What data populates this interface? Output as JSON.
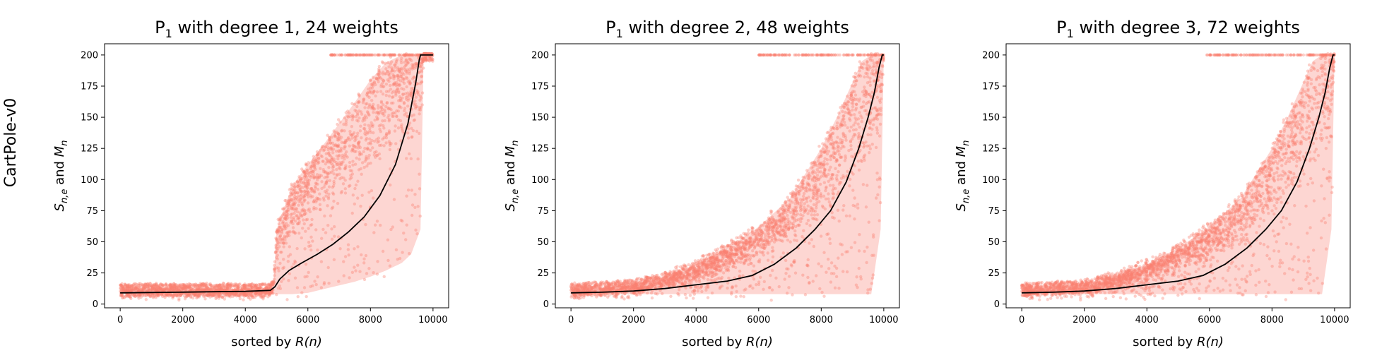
{
  "row_label": "CartPole-v0",
  "chart_data": [
    {
      "type": "scatter",
      "title_main": "P",
      "title_sub": "1",
      "title_rest": " with degree 1, 24 weights",
      "xlabel_main": "sorted by ",
      "xlabel_italic": "R(n)",
      "ylabel": "S",
      "ylabel_sub": "n,e",
      "ylabel_mid": " and ",
      "ylabel_main2": "M",
      "ylabel_sub2": "n",
      "xlim": [
        -500,
        10500
      ],
      "ylim": [
        -3,
        209
      ],
      "xticks": [
        0,
        2000,
        4000,
        6000,
        8000,
        10000
      ],
      "yticks": [
        0,
        25,
        50,
        75,
        100,
        125,
        150,
        175,
        200
      ],
      "series": [
        {
          "role": "scatter",
          "color": "#fa8072",
          "band": [
            [
              0,
              8,
              12
            ],
            [
              4800,
              8,
              12
            ],
            [
              4900,
              8,
              16
            ],
            [
              5000,
              8,
              60
            ],
            [
              5500,
              8,
              95
            ],
            [
              6000,
              9,
              112
            ],
            [
              6500,
              12,
              128
            ],
            [
              7000,
              15,
              145
            ],
            [
              7500,
              18,
              162
            ],
            [
              8000,
              22,
              180
            ],
            [
              8500,
              27,
              194
            ],
            [
              9000,
              33,
              200
            ],
            [
              9300,
              40,
              200
            ],
            [
              9600,
              60,
              200
            ],
            [
              9700,
              200,
              200
            ],
            [
              10000,
              200,
              200
            ]
          ],
          "cap_start": 6700
        },
        {
          "role": "mean",
          "color": "#000000",
          "x": [
            0,
            1000,
            2000,
            3000,
            4000,
            4800,
            4950,
            5100,
            5400,
            5800,
            6300,
            6800,
            7300,
            7800,
            8300,
            8800,
            9200,
            9450,
            9560,
            9600,
            10000
          ],
          "y": [
            9,
            9.3,
            9.6,
            9.9,
            10.2,
            11,
            14,
            20,
            27,
            33,
            40,
            48,
            58,
            70,
            87,
            112,
            145,
            178,
            196,
            200,
            200
          ]
        }
      ]
    },
    {
      "type": "scatter",
      "title_main": "P",
      "title_sub": "1",
      "title_rest": " with degree 2, 48 weights",
      "xlabel_main": "sorted by ",
      "xlabel_italic": "R(n)",
      "ylabel": "S",
      "ylabel_sub": "n,e",
      "ylabel_mid": " and ",
      "ylabel_main2": "M",
      "ylabel_sub2": "n",
      "xlim": [
        -500,
        10500
      ],
      "ylim": [
        -3,
        209
      ],
      "xticks": [
        0,
        2000,
        4000,
        6000,
        8000,
        10000
      ],
      "yticks": [
        0,
        25,
        50,
        75,
        100,
        125,
        150,
        175,
        200
      ],
      "series": [
        {
          "role": "scatter",
          "color": "#fa8072",
          "band": [
            [
              0,
              8,
              12
            ],
            [
              2000,
              8,
              15
            ],
            [
              3000,
              8,
              22
            ],
            [
              4000,
              8,
              32
            ],
            [
              5000,
              8,
              45
            ],
            [
              6000,
              8,
              62
            ],
            [
              7000,
              8,
              85
            ],
            [
              7500,
              8,
              105
            ],
            [
              8000,
              8,
              125
            ],
            [
              8500,
              8,
              150
            ],
            [
              9000,
              8,
              178
            ],
            [
              9300,
              8,
              195
            ],
            [
              9600,
              8,
              200
            ],
            [
              9900,
              60,
              200
            ],
            [
              10000,
              200,
              200
            ]
          ],
          "cap_start": 6000
        },
        {
          "role": "mean",
          "color": "#000000",
          "x": [
            0,
            1000,
            2000,
            3000,
            4000,
            5000,
            5800,
            6500,
            7200,
            7800,
            8300,
            8800,
            9200,
            9500,
            9700,
            9850,
            9950,
            10000
          ],
          "y": [
            9,
            9.5,
            10.5,
            12.5,
            15.5,
            18.5,
            23,
            32,
            45,
            60,
            75,
            98,
            125,
            150,
            170,
            190,
            200,
            200
          ]
        }
      ]
    },
    {
      "type": "scatter",
      "title_main": "P",
      "title_sub": "1",
      "title_rest": " with degree 3, 72 weights",
      "xlabel_main": "sorted by ",
      "xlabel_italic": "R(n)",
      "ylabel": "S",
      "ylabel_sub": "n,e",
      "ylabel_mid": " and ",
      "ylabel_main2": "M",
      "ylabel_sub2": "n",
      "xlim": [
        -500,
        10500
      ],
      "ylim": [
        -3,
        209
      ],
      "xticks": [
        0,
        2000,
        4000,
        6000,
        8000,
        10000
      ],
      "yticks": [
        0,
        25,
        50,
        75,
        100,
        125,
        150,
        175,
        200
      ],
      "series": [
        {
          "role": "scatter",
          "color": "#fa8072",
          "band": [
            [
              0,
              8,
              12
            ],
            [
              2000,
              8,
              15
            ],
            [
              3000,
              8,
              22
            ],
            [
              4000,
              8,
              32
            ],
            [
              5000,
              8,
              45
            ],
            [
              6000,
              8,
              62
            ],
            [
              7000,
              8,
              85
            ],
            [
              7500,
              8,
              105
            ],
            [
              8000,
              8,
              125
            ],
            [
              8500,
              8,
              150
            ],
            [
              9000,
              8,
              178
            ],
            [
              9300,
              8,
              195
            ],
            [
              9600,
              8,
              200
            ],
            [
              9900,
              60,
              200
            ],
            [
              10000,
              200,
              200
            ]
          ],
          "cap_start": 5900
        },
        {
          "role": "mean",
          "color": "#000000",
          "x": [
            0,
            1000,
            2000,
            3000,
            4000,
            5000,
            5800,
            6500,
            7200,
            7800,
            8300,
            8800,
            9200,
            9500,
            9700,
            9850,
            9950,
            10000
          ],
          "y": [
            9,
            9.5,
            10.5,
            12.5,
            15.5,
            18.5,
            23,
            32,
            45,
            60,
            75,
            98,
            125,
            150,
            170,
            190,
            200,
            200
          ]
        }
      ]
    }
  ]
}
